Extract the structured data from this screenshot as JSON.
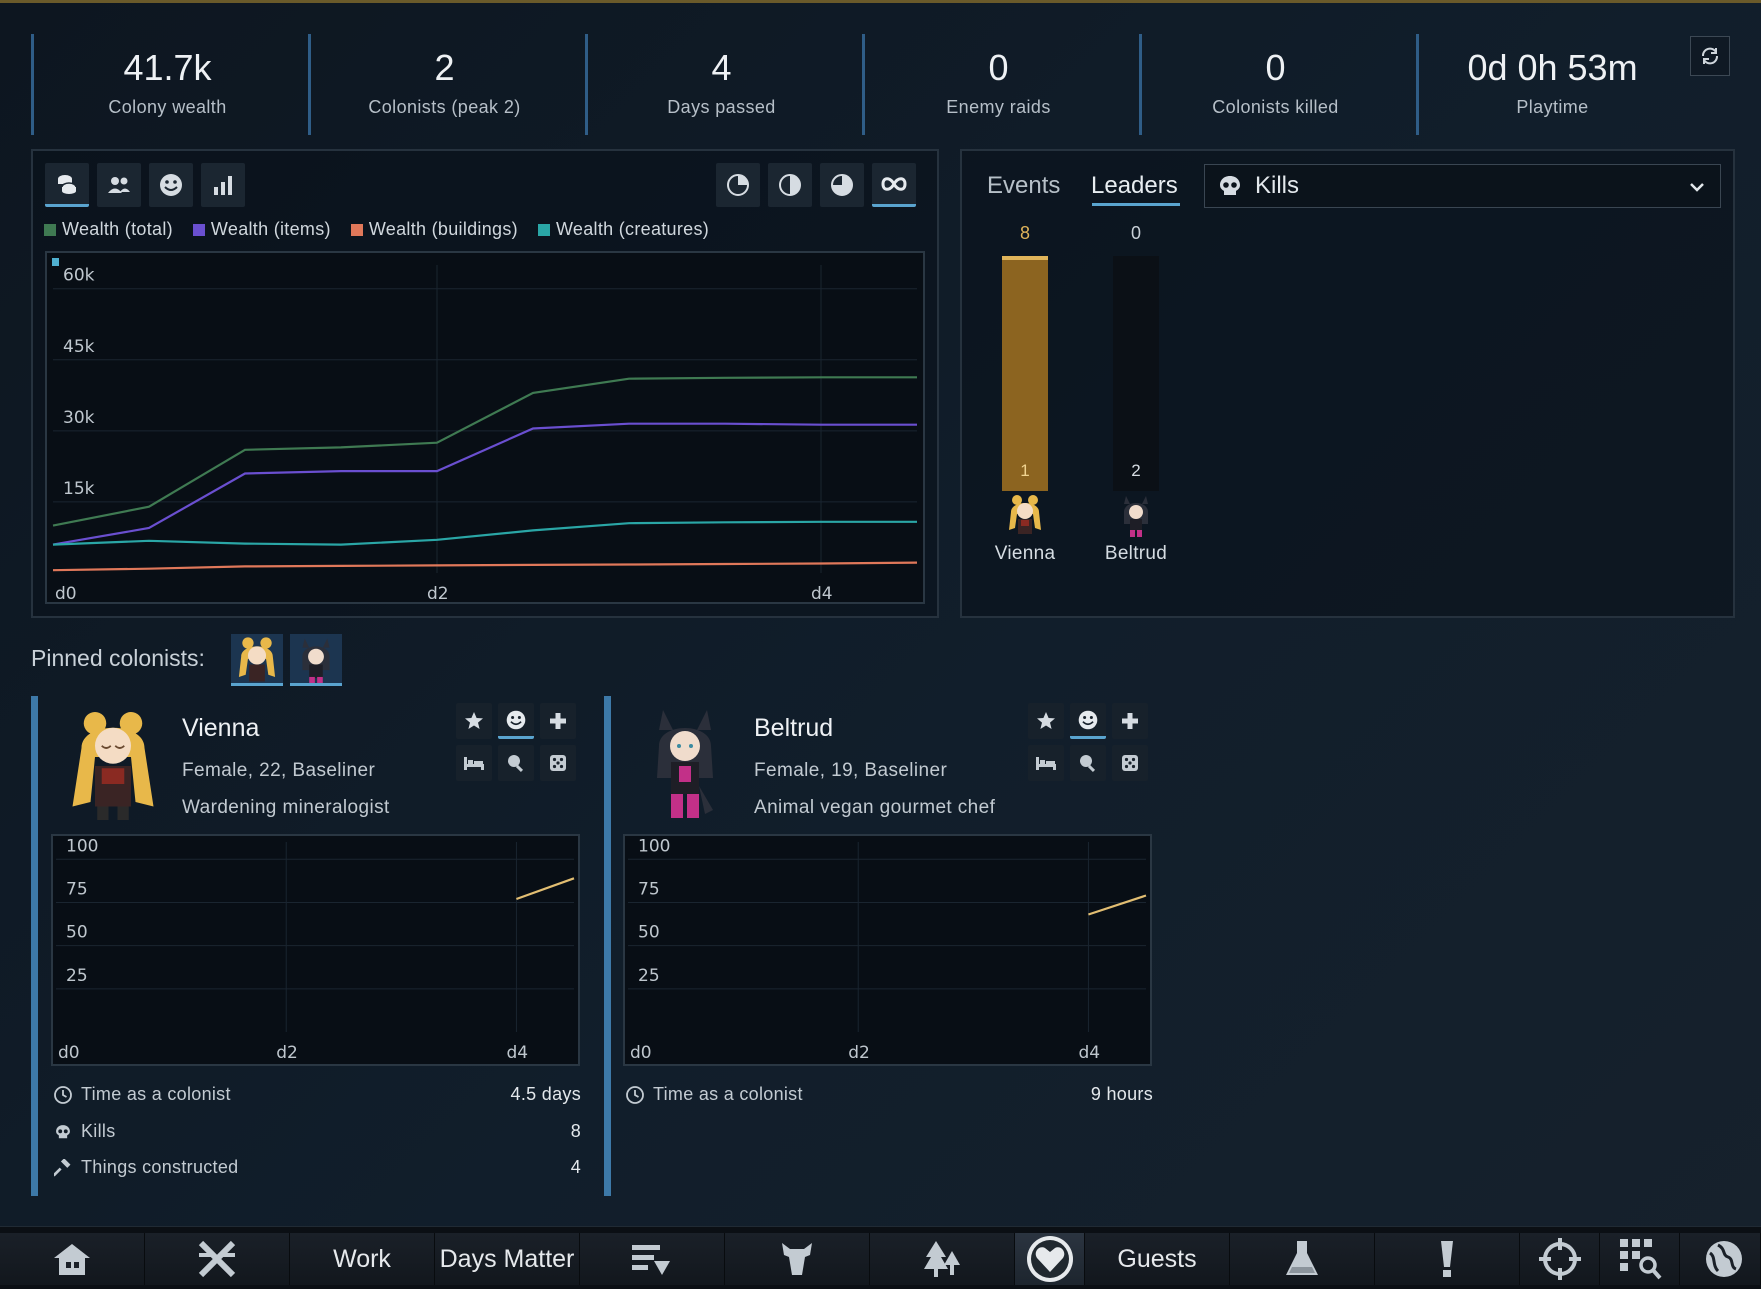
{
  "stats": [
    {
      "value": "41.7k",
      "label": "Colony wealth"
    },
    {
      "value": "2",
      "label": "Colonists (peak 2)"
    },
    {
      "value": "4",
      "label": "Days passed"
    },
    {
      "value": "0",
      "label": "Enemy raids"
    },
    {
      "value": "0",
      "label": "Colonists killed"
    },
    {
      "value": "0d 0h 53m",
      "label": "Playtime"
    }
  ],
  "graph_toolbar": {
    "left_icons": [
      "coins-icon",
      "people-icon",
      "smiley-icon",
      "bar-chart-icon"
    ],
    "right_icons": [
      "pie-quarter-icon",
      "pie-half-icon",
      "pie-three-quarter-icon",
      "infinity-icon"
    ],
    "active_left": 0,
    "active_right": 3
  },
  "chart_data": {
    "type": "line",
    "x_tick_labels": [
      "d0",
      "d2",
      "d4"
    ],
    "xlim": [
      0,
      4.5
    ],
    "ylim": [
      0,
      65000
    ],
    "y_ticks": [
      15000,
      30000,
      45000,
      60000
    ],
    "y_tick_labels": [
      "15k",
      "30k",
      "45k",
      "60k"
    ],
    "grid": true,
    "legend_position": "top",
    "series": [
      {
        "name": "Wealth (total)",
        "color": "#3f7a52",
        "x": [
          0,
          0.5,
          1.0,
          1.5,
          2.0,
          2.5,
          3.0,
          3.5,
          4.0,
          4.5
        ],
        "y": [
          10000,
          14000,
          26000,
          26500,
          27500,
          38000,
          41000,
          41200,
          41300,
          41300
        ]
      },
      {
        "name": "Wealth (items)",
        "color": "#6a4fd0",
        "x": [
          0,
          0.5,
          1.0,
          1.5,
          2.0,
          2.5,
          3.0,
          3.5,
          4.0,
          4.5
        ],
        "y": [
          6000,
          9500,
          21000,
          21500,
          21500,
          30500,
          31500,
          31500,
          31300,
          31300
        ]
      },
      {
        "name": "Wealth (buildings)",
        "color": "#e0785a",
        "x": [
          0,
          0.5,
          1.0,
          1.5,
          2.0,
          2.5,
          3.0,
          3.5,
          4.0,
          4.5
        ],
        "y": [
          600,
          900,
          1400,
          1500,
          1600,
          1700,
          1800,
          1900,
          2000,
          2200
        ]
      },
      {
        "name": "Wealth (creatures)",
        "color": "#2aa6a6",
        "x": [
          0,
          0.5,
          1.0,
          1.5,
          2.0,
          2.5,
          3.0,
          3.5,
          4.0,
          4.5
        ],
        "y": [
          6000,
          6800,
          6200,
          6000,
          7000,
          9000,
          10500,
          10700,
          10800,
          10800
        ]
      }
    ]
  },
  "leaders": {
    "tabs": [
      "Events",
      "Leaders"
    ],
    "active_tab": 1,
    "metric": "Kills",
    "max": 8,
    "entries": [
      {
        "name": "Vienna",
        "value": 8,
        "value_label": "8",
        "rank": "1",
        "color": "#8c6420"
      },
      {
        "name": "Beltrud",
        "value": 0,
        "value_label": "0",
        "rank": "2",
        "color": "#0b1016"
      }
    ]
  },
  "pinned_label": "Pinned colonists:",
  "colonists": [
    {
      "name": "Vienna",
      "desc": "Female, 22, Baseliner",
      "title": "Wardening mineralogist",
      "chart_data": {
        "type": "line",
        "x_tick_labels": [
          "d0",
          "d2",
          "d4"
        ],
        "xlim": [
          0,
          4.5
        ],
        "ylim": [
          0,
          110
        ],
        "y_ticks": [
          25,
          50,
          75,
          100
        ],
        "y_tick_labels": [
          "25",
          "50",
          "75",
          "100"
        ],
        "grid": true,
        "series": [
          {
            "color": "#e2be72",
            "x": [
              4.0,
              4.5
            ],
            "y": [
              77,
              89
            ]
          }
        ]
      },
      "stats": [
        {
          "icon": "clock-icon",
          "label": "Time as a colonist",
          "value": "4.5 days"
        },
        {
          "icon": "skull-icon",
          "label": "Kills",
          "value": "8"
        },
        {
          "icon": "hammer-icon",
          "label": "Things constructed",
          "value": "4"
        }
      ]
    },
    {
      "name": "Beltrud",
      "desc": "Female, 19, Baseliner",
      "title": "Animal vegan gourmet chef",
      "chart_data": {
        "type": "line",
        "x_tick_labels": [
          "d0",
          "d2",
          "d4"
        ],
        "xlim": [
          0,
          4.5
        ],
        "ylim": [
          0,
          110
        ],
        "y_ticks": [
          25,
          50,
          75,
          100
        ],
        "y_tick_labels": [
          "25",
          "50",
          "75",
          "100"
        ],
        "grid": true,
        "series": [
          {
            "color": "#e2be72",
            "x": [
              4.0,
              4.5
            ],
            "y": [
              68,
              79
            ]
          }
        ]
      },
      "stats": [
        {
          "icon": "clock-icon",
          "label": "Time as a colonist",
          "value": "9 hours"
        }
      ]
    }
  ],
  "bottom_bar": [
    {
      "icon": "home-icon",
      "label": ""
    },
    {
      "icon": "swords-icon",
      "label": ""
    },
    {
      "icon": "",
      "label": "Work"
    },
    {
      "icon": "",
      "label": "Days Matter"
    },
    {
      "icon": "schedule-icon",
      "label": ""
    },
    {
      "icon": "animal-icon",
      "label": ""
    },
    {
      "icon": "trees-icon",
      "label": ""
    },
    {
      "icon": "heart-icon",
      "label": ""
    },
    {
      "icon": "",
      "label": "Guests"
    },
    {
      "icon": "flask-icon",
      "label": ""
    },
    {
      "icon": "exclamation-icon",
      "label": ""
    },
    {
      "icon": "crosshair-icon",
      "label": ""
    },
    {
      "icon": "grid-search-icon",
      "label": ""
    },
    {
      "icon": "globe-icon",
      "label": ""
    }
  ],
  "active_bottom": 7
}
